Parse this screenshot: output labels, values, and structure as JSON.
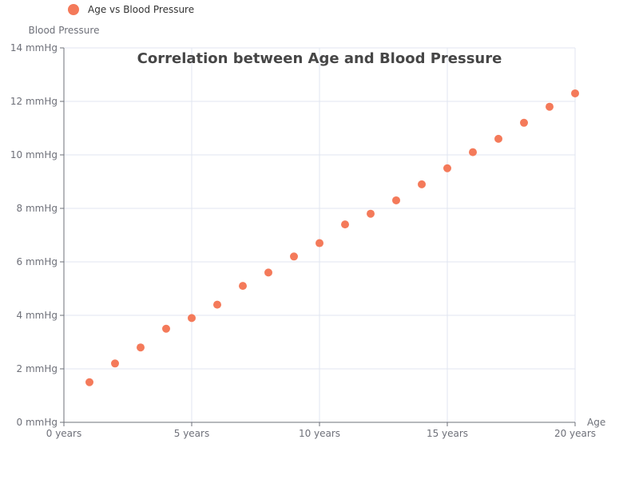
{
  "chart_data": {
    "type": "scatter",
    "title": "Correlation between Age and Blood Pressure",
    "xlabel": "Age",
    "ylabel": "Blood Pressure",
    "xlim": [
      0,
      20
    ],
    "ylim": [
      0,
      14
    ],
    "x_ticks": [
      0,
      5,
      10,
      15,
      20
    ],
    "x_tick_labels": [
      "0 years",
      "5 years",
      "10 years",
      "15 years",
      "20 years"
    ],
    "y_ticks": [
      0,
      2,
      4,
      6,
      8,
      10,
      12,
      14
    ],
    "y_tick_labels": [
      "0 mmHg",
      "2 mmHg",
      "4 mmHg",
      "6 mmHg",
      "8 mmHg",
      "10 mmHg",
      "12 mmHg",
      "14 mmHg"
    ],
    "grid": true,
    "legend_position": "top-left",
    "series": [
      {
        "name": "Age vs Blood Pressure",
        "color": "#f47a5a",
        "x": [
          1,
          2,
          3,
          4,
          5,
          6,
          7,
          8,
          9,
          10,
          11,
          12,
          13,
          14,
          15,
          16,
          17,
          18,
          19,
          20
        ],
        "y": [
          1.5,
          2.2,
          2.8,
          3.5,
          3.9,
          4.4,
          5.1,
          5.6,
          6.2,
          6.7,
          7.4,
          7.8,
          8.3,
          8.9,
          9.5,
          10.1,
          10.6,
          11.2,
          11.8,
          12.3
        ]
      }
    ]
  }
}
